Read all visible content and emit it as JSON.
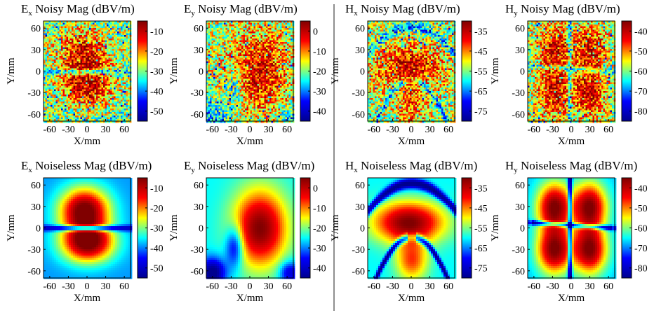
{
  "chart_data": [
    {
      "type": "heatmap",
      "title_main": "E",
      "title_sub": "x",
      "title_rest": " Noisy Mag (dBV/m)",
      "xlabel": "X/mm",
      "ylabel": "Y/mm",
      "xticks": [
        "-60",
        "-30",
        "0",
        "30",
        "60"
      ],
      "yticks": [
        "60",
        "30",
        "0",
        "-30",
        "-60"
      ],
      "xlim": [
        -70,
        70
      ],
      "ylim": [
        -70,
        70
      ],
      "colorbar_ticks": [
        "-10",
        "-20",
        "-30",
        "-40",
        "-50"
      ],
      "colorbar_range": [
        -55,
        -5
      ],
      "pattern": "ex",
      "noisy": true
    },
    {
      "type": "heatmap",
      "title_main": "E",
      "title_sub": "y",
      "title_rest": " Noisy Mag (dBV/m)",
      "xlabel": "X/mm",
      "ylabel": "Y/mm",
      "xticks": [
        "-60",
        "-30",
        "0",
        "30",
        "60"
      ],
      "yticks": [
        "60",
        "30",
        "0",
        "-30",
        "-60"
      ],
      "xlim": [
        -70,
        70
      ],
      "ylim": [
        -70,
        70
      ],
      "colorbar_ticks": [
        "0",
        "-10",
        "-20",
        "-30",
        "-40"
      ],
      "colorbar_range": [
        -45,
        5
      ],
      "pattern": "ey",
      "noisy": true
    },
    {
      "type": "heatmap",
      "title_main": "H",
      "title_sub": "x",
      "title_rest": " Noisy Mag (dBV/m)",
      "xlabel": "X/mm",
      "ylabel": "Y/mm",
      "xticks": [
        "-60",
        "-30",
        "0",
        "30",
        "60"
      ],
      "yticks": [
        "60",
        "30",
        "0",
        "-30",
        "-60"
      ],
      "xlim": [
        -70,
        70
      ],
      "ylim": [
        -70,
        70
      ],
      "colorbar_ticks": [
        "-35",
        "-45",
        "-55",
        "-65",
        "-75"
      ],
      "colorbar_range": [
        -80,
        -30
      ],
      "pattern": "hx",
      "noisy": true
    },
    {
      "type": "heatmap",
      "title_main": "H",
      "title_sub": "y",
      "title_rest": " Noisy Mag (dBV/m)",
      "xlabel": "X/mm",
      "ylabel": "Y/mm",
      "xticks": [
        "-60",
        "-30",
        "0",
        "30",
        "60"
      ],
      "yticks": [
        "60",
        "30",
        "0",
        "-30",
        "-60"
      ],
      "xlim": [
        -70,
        70
      ],
      "ylim": [
        -70,
        70
      ],
      "colorbar_ticks": [
        "-40",
        "-50",
        "-60",
        "-70",
        "-80"
      ],
      "colorbar_range": [
        -85,
        -35
      ],
      "pattern": "hy",
      "noisy": true
    },
    {
      "type": "heatmap",
      "title_main": "E",
      "title_sub": "x",
      "title_rest": " Noiseless Mag (dBV/m)",
      "xlabel": "X/mm",
      "ylabel": "Y/mm",
      "xticks": [
        "-60",
        "-30",
        "0",
        "30",
        "60"
      ],
      "yticks": [
        "60",
        "30",
        "0",
        "-30",
        "-60"
      ],
      "xlim": [
        -70,
        70
      ],
      "ylim": [
        -70,
        70
      ],
      "colorbar_ticks": [
        "-10",
        "-20",
        "-30",
        "-40",
        "-50"
      ],
      "colorbar_range": [
        -55,
        -5
      ],
      "pattern": "ex",
      "noisy": false
    },
    {
      "type": "heatmap",
      "title_main": "E",
      "title_sub": "y",
      "title_rest": " Noiseless Mag (dBV/m)",
      "xlabel": "X/mm",
      "ylabel": "Y/mm",
      "xticks": [
        "-60",
        "-30",
        "0",
        "30",
        "60"
      ],
      "yticks": [
        "60",
        "30",
        "0",
        "-30",
        "-60"
      ],
      "xlim": [
        -70,
        70
      ],
      "ylim": [
        -70,
        70
      ],
      "colorbar_ticks": [
        "0",
        "-10",
        "-20",
        "-30",
        "-40"
      ],
      "colorbar_range": [
        -45,
        5
      ],
      "pattern": "ey",
      "noisy": false
    },
    {
      "type": "heatmap",
      "title_main": "H",
      "title_sub": "x",
      "title_rest": " Noiseless Mag (dBV/m)",
      "xlabel": "X/mm",
      "ylabel": "Y/mm",
      "xticks": [
        "-60",
        "-30",
        "0",
        "30",
        "60"
      ],
      "yticks": [
        "60",
        "30",
        "0",
        "-30",
        "-60"
      ],
      "xlim": [
        -70,
        70
      ],
      "ylim": [
        -70,
        70
      ],
      "colorbar_ticks": [
        "-35",
        "-45",
        "-55",
        "-65",
        "-75"
      ],
      "colorbar_range": [
        -80,
        -30
      ],
      "pattern": "hx",
      "noisy": false
    },
    {
      "type": "heatmap",
      "title_main": "H",
      "title_sub": "y",
      "title_rest": " Noiseless Mag (dBV/m)",
      "xlabel": "X/mm",
      "ylabel": "Y/mm",
      "xticks": [
        "-60",
        "-30",
        "0",
        "30",
        "60"
      ],
      "yticks": [
        "60",
        "30",
        "0",
        "-30",
        "-60"
      ],
      "xlim": [
        -70,
        70
      ],
      "ylim": [
        -70,
        70
      ],
      "colorbar_ticks": [
        "-40",
        "-50",
        "-60",
        "-70",
        "-80"
      ],
      "colorbar_range": [
        -85,
        -35
      ],
      "pattern": "hy",
      "noisy": false
    }
  ],
  "colormap": "jet",
  "colormap_stops": [
    "#00008f",
    "#0000ff",
    "#00ffff",
    "#ffff00",
    "#ff0000",
    "#800000"
  ]
}
